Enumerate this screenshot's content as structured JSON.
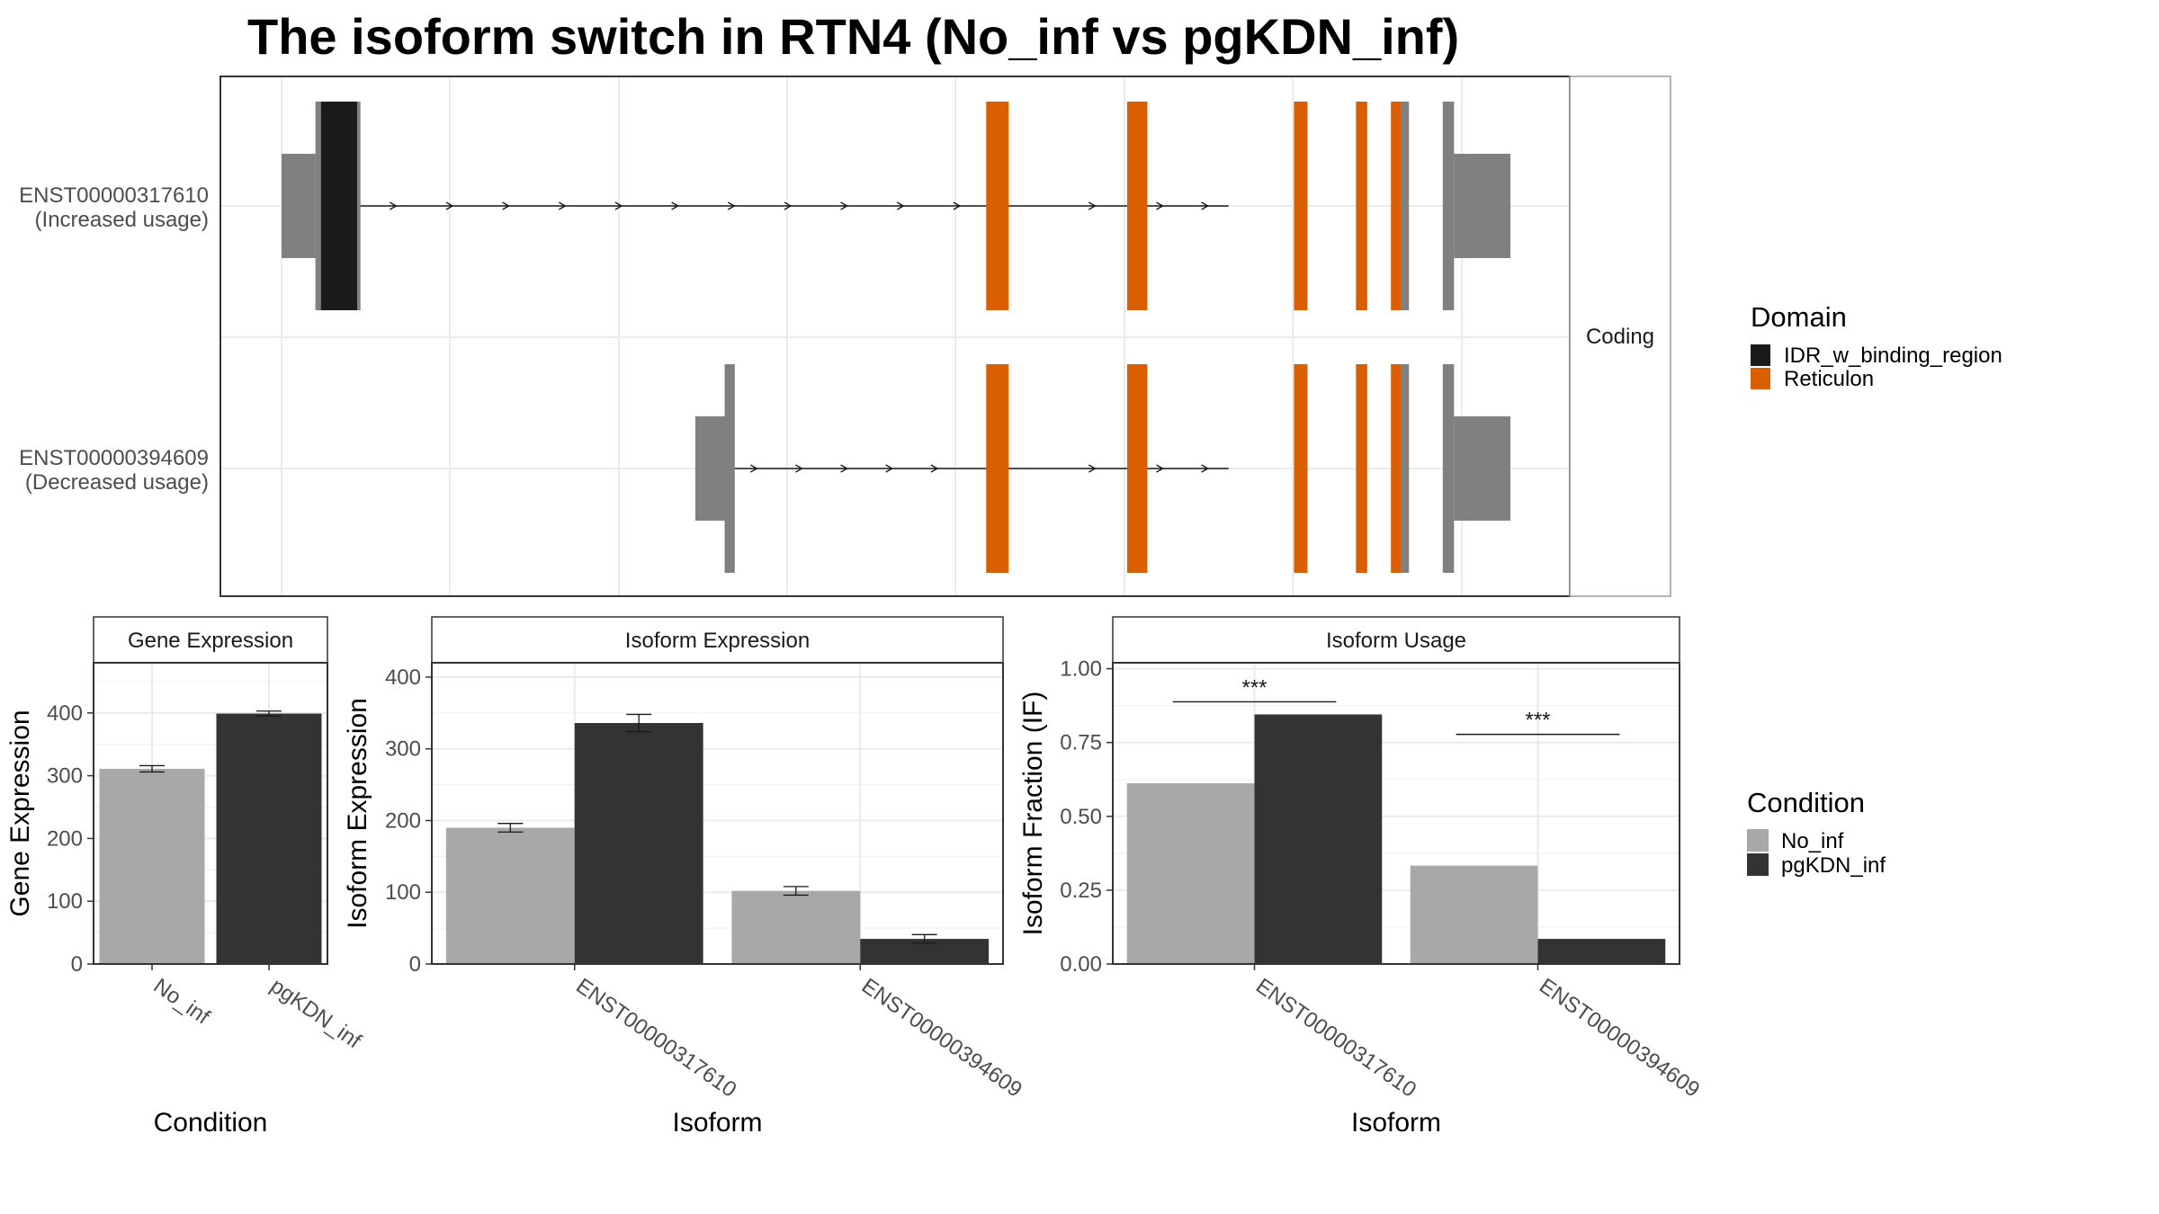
{
  "title": "The isoform switch in RTN4 (No_inf vs pgKDN_inf)",
  "colors": {
    "no_inf": "#a8a8a8",
    "pgkdn_inf": "#333333",
    "idr": "#1a1a1a",
    "reticulon": "#d95f02",
    "utr": "#808080"
  },
  "chart_data": [
    {
      "type": "gene-structure",
      "strip": "Coding",
      "x_unit": "genomic position (scaled 0-1000)",
      "transcripts": [
        {
          "id": "ENST00000317610",
          "label": "ENST00000317610",
          "sublabel": "(Increased usage)",
          "intron": [
            60,
            840
          ],
          "arrows": [
            100,
            150,
            200,
            250,
            300,
            350,
            400,
            450,
            500,
            550,
            600,
            720,
            780,
            820
          ],
          "features": [
            {
              "type": "utr",
              "start": 0,
              "end": 30
            },
            {
              "type": "cds",
              "start": 30,
              "end": 70
            },
            {
              "type": "IDR_w_binding_region",
              "start": 35,
              "end": 67
            },
            {
              "type": "Reticulon",
              "start": 625,
              "end": 645
            },
            {
              "type": "Reticulon",
              "start": 750,
              "end": 768
            },
            {
              "type": "Reticulon",
              "start": 898,
              "end": 910
            },
            {
              "type": "Reticulon",
              "start": 953,
              "end": 963
            },
            {
              "type": "Reticulon",
              "start": 984,
              "end": 993
            },
            {
              "type": "cds",
              "start": 993,
              "end": 1000
            },
            {
              "type": "cds",
              "start": 1030,
              "end": 1040
            },
            {
              "type": "utr",
              "start": 1040,
              "end": 1090
            }
          ]
        },
        {
          "id": "ENST00000394609",
          "label": "ENST00000394609",
          "sublabel": "(Decreased usage)",
          "intron": [
            400,
            840
          ],
          "arrows": [
            420,
            460,
            500,
            540,
            580,
            720,
            780,
            820
          ],
          "features": [
            {
              "type": "utr",
              "start": 367,
              "end": 393
            },
            {
              "type": "cds",
              "start": 393,
              "end": 402
            },
            {
              "type": "Reticulon",
              "start": 625,
              "end": 645
            },
            {
              "type": "Reticulon",
              "start": 750,
              "end": 768
            },
            {
              "type": "Reticulon",
              "start": 898,
              "end": 910
            },
            {
              "type": "Reticulon",
              "start": 953,
              "end": 963
            },
            {
              "type": "Reticulon",
              "start": 984,
              "end": 993
            },
            {
              "type": "cds",
              "start": 993,
              "end": 1000
            },
            {
              "type": "cds",
              "start": 1030,
              "end": 1040
            },
            {
              "type": "utr",
              "start": 1040,
              "end": 1090
            }
          ]
        }
      ],
      "legend": {
        "title": "Domain",
        "items": [
          {
            "label": "IDR_w_binding_region",
            "color": "#1a1a1a"
          },
          {
            "label": "Reticulon",
            "color": "#d95f02"
          }
        ],
        "placement": "right"
      }
    },
    {
      "type": "bar",
      "strip": "Gene Expression",
      "categories": [
        "No_inf",
        "pgKDN_inf"
      ],
      "values": [
        311,
        399
      ],
      "errors": [
        5,
        4
      ],
      "xlabel": "Condition",
      "ylabel": "Gene Expression",
      "ylim": [
        0,
        480
      ],
      "yticks": [
        0,
        100,
        200,
        300,
        400
      ],
      "grid": true
    },
    {
      "type": "bar",
      "strip": "Isoform Expression",
      "categories": [
        "ENST00000317610",
        "ENST00000394609"
      ],
      "series": [
        {
          "name": "No_inf",
          "values": [
            190,
            102
          ],
          "errors": [
            6,
            6
          ]
        },
        {
          "name": "pgKDN_inf",
          "values": [
            336,
            35
          ],
          "errors": [
            12,
            6
          ]
        }
      ],
      "xlabel": "Isoform",
      "ylabel": "Isoform Expression",
      "ylim": [
        0,
        420
      ],
      "yticks": [
        0,
        100,
        200,
        300,
        400
      ],
      "grid": true
    },
    {
      "type": "bar",
      "strip": "Isoform Usage",
      "categories": [
        "ENST00000317610",
        "ENST00000394609"
      ],
      "series": [
        {
          "name": "No_inf",
          "values": [
            0.612,
            0.333
          ]
        },
        {
          "name": "pgKDN_inf",
          "values": [
            0.845,
            0.085
          ]
        }
      ],
      "significance": [
        "***",
        "***"
      ],
      "xlabel": "Isoform",
      "ylabel": "Isoform Fraction (IF)",
      "ylim": [
        0,
        1.02
      ],
      "yticks": [
        "0.00",
        "0.25",
        "0.50",
        "0.75",
        "1.00"
      ],
      "grid": true
    }
  ],
  "condition_legend": {
    "title": "Condition",
    "items": [
      {
        "label": "No_inf",
        "color": "#a8a8a8"
      },
      {
        "label": "pgKDN_inf",
        "color": "#333333"
      }
    ],
    "placement": "right"
  }
}
